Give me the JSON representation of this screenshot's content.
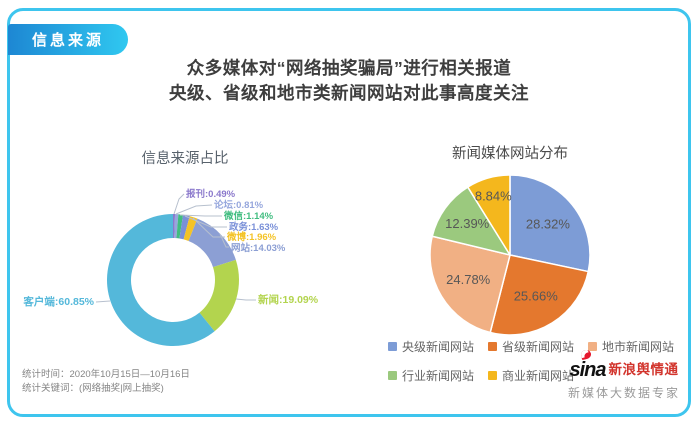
{
  "tab": {
    "label": "信息来源"
  },
  "title": {
    "line1": "众多媒体对“网络抽奖骗局”进行相关报道",
    "line2": "央级、省级和地市类新闻网站对此事高度关注"
  },
  "colors": {
    "card_border": "#3ec5ee",
    "tab_gradient_start": "#1d87d3",
    "tab_gradient_end": "#30c8f0",
    "leader_line": "#b7c0ce",
    "pie_label_text": "#575757"
  },
  "chart_data": [
    {
      "type": "pie",
      "subtype": "donut",
      "title": "信息来源占比",
      "legend_position": "none",
      "series": [
        {
          "name": "报刊",
          "value": 0.49,
          "color": "#8b79cc",
          "label": "报刊:0.49%"
        },
        {
          "name": "论坛",
          "value": 0.81,
          "color": "#96a7dd",
          "label": "论坛:0.81%"
        },
        {
          "name": "微信",
          "value": 1.14,
          "color": "#41bd80",
          "label": "微信:1.14%"
        },
        {
          "name": "政务",
          "value": 1.63,
          "color": "#7a90d8",
          "label": "政务:1.63%"
        },
        {
          "name": "微博",
          "value": 1.96,
          "color": "#f4c327",
          "label": "微博:1.96%"
        },
        {
          "name": "网站",
          "value": 14.03,
          "color": "#8c9fd4",
          "label": "网站:14.03%"
        },
        {
          "name": "新闻",
          "value": 19.09,
          "color": "#b3d44e",
          "label": "新闻:19.09%"
        },
        {
          "name": "客户端",
          "value": 60.85,
          "color": "#54b8da",
          "label": "客户端:60.85%"
        }
      ]
    },
    {
      "type": "pie",
      "title": "新闻媒体网站分布",
      "legend_position": "bottom",
      "series": [
        {
          "name": "央级新闻网站",
          "value": 28.32,
          "color": "#7d9cd6",
          "label": "28.32%"
        },
        {
          "name": "省级新闻网站",
          "value": 25.66,
          "color": "#e4782e",
          "label": "25.66%"
        },
        {
          "name": "地市新闻网站",
          "value": 24.78,
          "color": "#f1b084",
          "label": "24.78%"
        },
        {
          "name": "行业新闻网站",
          "value": 12.39,
          "color": "#9bc97e",
          "label": "12.39%"
        },
        {
          "name": "商业新闻网站",
          "value": 8.84,
          "color": "#f4b71d",
          "label": "8.84%"
        }
      ]
    }
  ],
  "footer": {
    "stats_line1": "统计时间：2020年10月15日—10月16日",
    "stats_line2": "统计关键词：(网络抽奖|网上抽奖)",
    "brand_sina": "sina",
    "brand_name": "新浪舆情通",
    "brand_slogan": "新媒体大数据专家"
  }
}
